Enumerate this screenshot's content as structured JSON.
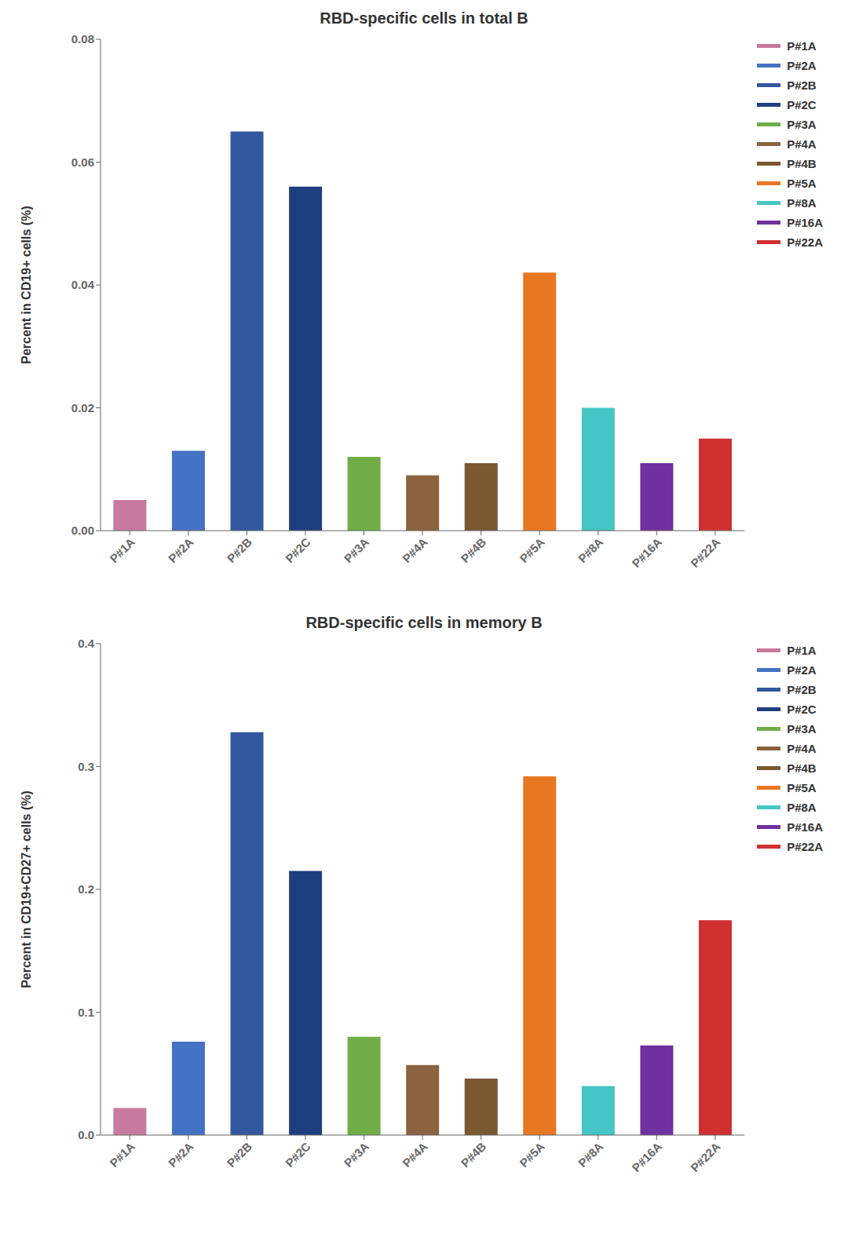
{
  "chart_data": [
    {
      "type": "bar",
      "title": "RBD-specific cells in total B",
      "y_label": "Percent in CD19+ cells (%)",
      "categories": [
        "P#1A",
        "P#2A",
        "P#2B",
        "P#2C",
        "P#3A",
        "P#4A",
        "P#4B",
        "P#5A",
        "P#8A",
        "P#16A",
        "P#22A"
      ],
      "values": [
        0.005,
        0.013,
        0.065,
        0.056,
        0.012,
        0.009,
        0.011,
        0.042,
        0.02,
        0.011,
        0.015
      ],
      "colors": [
        "#c879a0",
        "#4472c4",
        "#3358a0",
        "#1f3e80",
        "#70ad47",
        "#8b6340",
        "#7a5830",
        "#e87722",
        "#45c5c5",
        "#7030a0",
        "#d03030"
      ],
      "ylim": [
        0,
        0.08
      ],
      "yticks": [
        {
          "value": 0,
          "label": "0.00"
        },
        0.02,
        0.04,
        0.06,
        0.08
      ],
      "grid": false,
      "legend": "right"
    },
    {
      "type": "bar",
      "title": "RBD-specific cells in memory B",
      "y_label": "Percent in CD19+CD27+ cells (%)",
      "categories": [
        "P#1A",
        "P#2A",
        "P#2B",
        "P#2C",
        "P#3A",
        "P#4A",
        "P#4B",
        "P#5A",
        "P#8A",
        "P#16A",
        "P#22A"
      ],
      "values": [
        0.022,
        0.076,
        0.328,
        0.215,
        0.08,
        0.057,
        0.046,
        0.292,
        0.04,
        0.073,
        0.175
      ],
      "colors": [
        "#c879a0",
        "#4472c4",
        "#3358a0",
        "#1f3e80",
        "#70ad47",
        "#8b6340",
        "#7a5830",
        "#e87722",
        "#45c5c5",
        "#7030a0",
        "#d03030"
      ],
      "ylim": [
        0,
        0.4
      ],
      "yticks": [
        {
          "value": 0,
          "label": "0.0"
        },
        0.1,
        0.2,
        0.3,
        0.4
      ],
      "grid": false,
      "legend": "right"
    }
  ]
}
